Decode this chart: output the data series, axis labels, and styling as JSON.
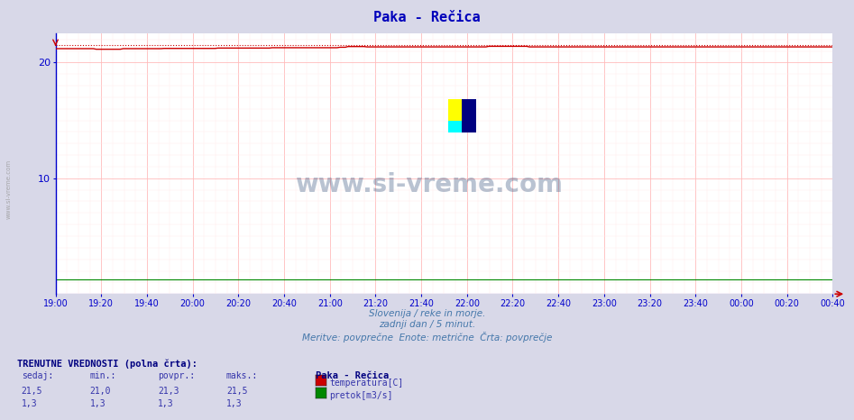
{
  "title": "Paka - Rečica",
  "title_color": "#0000bb",
  "background_color": "#d8d8e8",
  "plot_bg_color": "#ffffff",
  "grid_color_major": "#ffbbbb",
  "grid_color_minor": "#ffe8e8",
  "xmin": 0,
  "xmax": 348,
  "ymin": 0,
  "ymax": 22.5,
  "yticks": [
    10,
    20
  ],
  "xtick_labels": [
    "19:00",
    "19:20",
    "19:40",
    "20:00",
    "20:20",
    "20:40",
    "21:00",
    "21:20",
    "21:40",
    "22:00",
    "22:20",
    "22:40",
    "23:00",
    "23:20",
    "23:40",
    "00:00",
    "00:20",
    "00:40"
  ],
  "axis_color": "#0000cc",
  "arrow_color": "#cc0000",
  "temp_line_color": "#cc0000",
  "pretok_line_color": "#008800",
  "watermark": "www.si-vreme.com",
  "watermark_color": "#1a3a6a",
  "xlabel_line1": "Slovenija / reke in morje.",
  "xlabel_line2": "zadnji dan / 5 minut.",
  "xlabel_line3": "Meritve: povprečne  Enote: metrične  Črta: povprečje",
  "footer_label": "TRENUTNE VREDNOSTI (polna črta):",
  "footer_cols": [
    "sedaj:",
    "min.:",
    "povpr.:",
    "maks.:"
  ],
  "footer_row1": [
    "21,5",
    "21,0",
    "21,3",
    "21,5"
  ],
  "footer_row2": [
    "1,3",
    "1,3",
    "1,3",
    "1,3"
  ],
  "footer_station": "Paka - Rečica",
  "footer_var1": "temperatura[C]",
  "footer_var2": "pretok[m3/s]"
}
